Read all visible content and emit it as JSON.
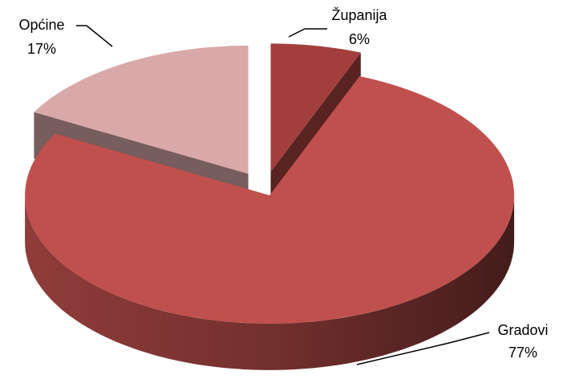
{
  "chart_data": {
    "type": "pie3d",
    "categories": [
      "Županija",
      "Gradovi",
      "Općine"
    ],
    "values": [
      6,
      77,
      17
    ],
    "value_labels": [
      "6%",
      "77%",
      "17%"
    ],
    "colors": [
      "#a23f3c",
      "#c0504d",
      "#d9a9a9"
    ]
  }
}
